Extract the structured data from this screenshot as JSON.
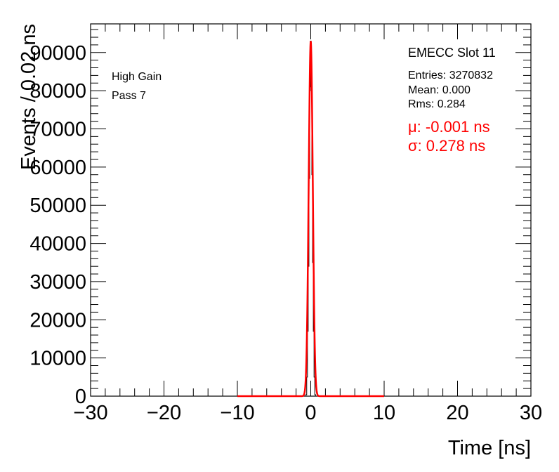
{
  "chart_data": {
    "type": "histogram",
    "xlabel": "Time [ns]",
    "ylabel": "Events / 0.02 ns",
    "xlim": [
      -30,
      30
    ],
    "ylim": [
      0,
      97500
    ],
    "x_ticks": [
      -30,
      -20,
      -10,
      0,
      10,
      20,
      30
    ],
    "x_tick_labels": [
      "−30",
      "−20",
      "−10",
      "0",
      "10",
      "20",
      "30"
    ],
    "y_ticks": [
      0,
      10000,
      20000,
      30000,
      40000,
      50000,
      60000,
      70000,
      80000,
      90000
    ],
    "y_tick_labels": [
      "0",
      "10000",
      "20000",
      "30000",
      "40000",
      "50000",
      "60000",
      "70000",
      "80000",
      "90000"
    ],
    "grid": false,
    "histogram": {
      "x": [
        -0.6,
        -0.5,
        -0.4,
        -0.3,
        -0.2,
        -0.1,
        0.0,
        0.1,
        0.2,
        0.3,
        0.4,
        0.5,
        0.6
      ],
      "y": [
        400,
        5000,
        17000,
        34000,
        57000,
        80000,
        93000,
        81000,
        58000,
        35000,
        17000,
        5000,
        400
      ]
    },
    "fit": {
      "function": "gaussian",
      "mu": -0.001,
      "sigma": 0.278,
      "amplitude": 93000,
      "range": [
        -10,
        10
      ],
      "color": "#ff0000"
    },
    "annotations_left": [
      "High Gain",
      "Pass 7"
    ],
    "stats": {
      "title": "EMECC Slot 11",
      "lines": [
        "Entries: 3270832",
        "Mean: 0.000",
        "Rms: 0.284"
      ],
      "fit_lines": [
        "μ: -0.001 ns",
        "σ: 0.278 ns"
      ]
    },
    "colors": {
      "histogram": "#000000",
      "fit": "#ff0000"
    }
  }
}
